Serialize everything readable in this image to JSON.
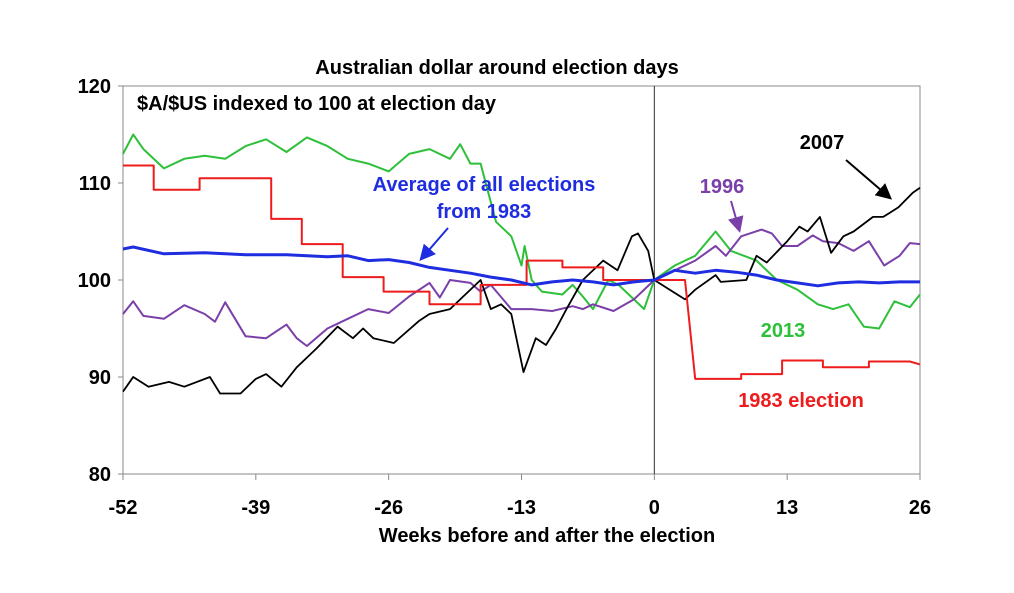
{
  "chart_data": {
    "type": "line",
    "title": "Australian dollar around election days",
    "subtitle": "$A/$US indexed to 100 at election day",
    "xlabel": "Weeks before and after the election",
    "ylabel": "",
    "xlim": [
      -52,
      26
    ],
    "ylim": [
      80,
      120
    ],
    "xticks": [
      -52,
      -39,
      -26,
      -13,
      0,
      13,
      26
    ],
    "yticks": [
      80,
      90,
      100,
      110,
      120
    ],
    "grid": false,
    "reference_line_x": 0,
    "series": [
      {
        "name": "2013",
        "color": "#2ec03a",
        "width": 2,
        "x": [
          -52,
          -51,
          -50,
          -48,
          -46,
          -44,
          -42,
          -40,
          -38,
          -36,
          -34,
          -32,
          -30,
          -28,
          -26,
          -24,
          -22,
          -20,
          -19,
          -18,
          -17,
          -15.5,
          -14,
          -13,
          -12.7,
          -12,
          -11,
          -9,
          -8,
          -7,
          -6,
          -4.5,
          -3.5,
          -2.5,
          -1,
          0,
          2,
          4,
          6,
          7.5,
          10,
          12,
          14,
          16,
          17.5,
          19,
          20.5,
          22,
          23.5,
          25,
          26
        ],
        "y": [
          113,
          115,
          113.5,
          111.5,
          112.5,
          112.8,
          112.5,
          113.8,
          114.5,
          113.2,
          114.7,
          113.8,
          112.5,
          112,
          111.2,
          113,
          113.5,
          112.5,
          114,
          112,
          112,
          106,
          104.5,
          101.5,
          103.5,
          100,
          98.8,
          98.5,
          99.5,
          98.3,
          97,
          100,
          99.5,
          98.5,
          97,
          100,
          101.5,
          102.5,
          105,
          103,
          102,
          100,
          99,
          97.5,
          97,
          97.5,
          95.2,
          95,
          97.8,
          97.2,
          98.5
        ]
      },
      {
        "name": "1996",
        "color": "#7a3fa8",
        "width": 2,
        "x": [
          -52,
          -51,
          -50,
          -48,
          -46,
          -44,
          -43,
          -42,
          -40,
          -38,
          -36,
          -35,
          -34,
          -32,
          -30,
          -28,
          -26,
          -24,
          -22,
          -21,
          -20,
          -18,
          -17,
          -16,
          -14,
          -12,
          -10,
          -8,
          -7,
          -6,
          -4,
          -2,
          0,
          2,
          4,
          6,
          7,
          8.5,
          10.5,
          11.5,
          12.5,
          14,
          15.5,
          16.5,
          18,
          19.5,
          21,
          22.5,
          24,
          25,
          26
        ],
        "y": [
          96.5,
          97.8,
          96.3,
          96,
          97.4,
          96.5,
          95.7,
          97.7,
          94.2,
          94,
          95.4,
          94,
          93.2,
          95,
          96,
          97,
          96.6,
          98.3,
          99.7,
          98.2,
          100,
          99.7,
          98.8,
          99.5,
          97,
          97,
          96.8,
          97.3,
          97,
          97.5,
          96.8,
          98,
          100,
          101,
          102,
          103.5,
          102.5,
          104.5,
          105.2,
          104.8,
          103.5,
          103.5,
          104.6,
          104,
          103.8,
          103,
          104,
          101.5,
          102.5,
          103.8,
          103.7
        ]
      },
      {
        "name": "2007",
        "color": "#000000",
        "width": 1.8,
        "x": [
          -52,
          -51,
          -49.5,
          -47.5,
          -46,
          -43.5,
          -42.5,
          -40.5,
          -39,
          -38,
          -36.5,
          -35,
          -34,
          -33,
          -31,
          -29.5,
          -28.5,
          -27.5,
          -25.5,
          -23,
          -22,
          -20,
          -19,
          -17,
          -16,
          -15,
          -14,
          -12.8,
          -11.6,
          -10.6,
          -9.6,
          -8.6,
          -7,
          -5,
          -3.6,
          -2.2,
          -1.6,
          -0.6,
          0,
          3,
          4,
          6,
          6.5,
          9,
          10,
          11,
          13,
          14.2,
          15,
          16.2,
          17.3,
          18.5,
          19.5,
          21.4,
          22.4,
          23.9,
          25.3,
          26
        ],
        "y": [
          88.5,
          90,
          89,
          89.5,
          89,
          90,
          88.3,
          88.3,
          89.8,
          90.3,
          89,
          91,
          92,
          93,
          95.2,
          94,
          95,
          94,
          93.5,
          95.8,
          96.5,
          97,
          98,
          100,
          97,
          97.5,
          96.5,
          90.5,
          94,
          93.3,
          95,
          97,
          100,
          102,
          101,
          104.5,
          104.8,
          103,
          100,
          98,
          99,
          100.5,
          99.8,
          100,
          102.5,
          101.8,
          104,
          105.5,
          105,
          106.5,
          102.8,
          104.5,
          105,
          106.5,
          106.5,
          107.5,
          109,
          109.5
        ]
      },
      {
        "name": "1983 election",
        "color": "#ee1c1c",
        "width": 2,
        "x": [
          -52,
          -49,
          -49,
          -44.5,
          -44.5,
          -37.5,
          -37.5,
          -34.5,
          -34.5,
          -30.5,
          -30.5,
          -26.5,
          -26.5,
          -22,
          -22,
          -17,
          -17,
          -12.5,
          -12.5,
          -9,
          -9,
          -5,
          -5,
          -0.5,
          0,
          3,
          4,
          8.5,
          8.5,
          12.5,
          12.5,
          16.5,
          16.5,
          21,
          21,
          25,
          26
        ],
        "y": [
          111.8,
          111.8,
          109.3,
          109.3,
          110.5,
          110.5,
          106.3,
          106.3,
          103.7,
          103.7,
          100.3,
          100.3,
          98.8,
          98.8,
          97.5,
          97.5,
          99.5,
          99.5,
          102,
          102,
          101.3,
          101.3,
          100,
          100,
          100,
          100,
          89.8,
          89.8,
          90.3,
          90.3,
          91.7,
          91.7,
          91,
          91,
          91.6,
          91.6,
          91.3
        ]
      },
      {
        "name": "Average of all elections from 1983",
        "color": "#1f2de0",
        "width": 3,
        "x": [
          -52,
          -51,
          -48,
          -44,
          -40,
          -36,
          -32,
          -30,
          -28,
          -26,
          -24,
          -22,
          -20,
          -18,
          -16,
          -14,
          -12,
          -10,
          -8,
          -6,
          -4,
          -2,
          0,
          2,
          4,
          6,
          8,
          10,
          12,
          14,
          16,
          18,
          20,
          22,
          24,
          26
        ],
        "y": [
          103.2,
          103.4,
          102.7,
          102.8,
          102.6,
          102.6,
          102.4,
          102.5,
          102,
          102.1,
          101.8,
          101.3,
          101,
          100.7,
          100.3,
          100,
          99.5,
          99.8,
          100,
          99.8,
          99.5,
          99.8,
          100,
          101,
          100.7,
          101,
          100.8,
          100.5,
          100,
          99.7,
          99.4,
          99.7,
          99.8,
          99.7,
          99.8,
          99.8
        ]
      }
    ],
    "annotations": [
      {
        "lines": [
          "Average of all elections",
          "from 1983"
        ],
        "series": "Average of all elections from 1983",
        "color": "#1f2de0"
      },
      {
        "lines": [
          "1996"
        ],
        "series": "1996",
        "color": "#7a3fa8"
      },
      {
        "lines": [
          "2007"
        ],
        "series": "2007",
        "color": "#000000"
      },
      {
        "lines": [
          "2013"
        ],
        "series": "2013",
        "color": "#2ec03a"
      },
      {
        "lines": [
          "1983 election"
        ],
        "series": "1983 election",
        "color": "#ee1c1c"
      }
    ]
  }
}
